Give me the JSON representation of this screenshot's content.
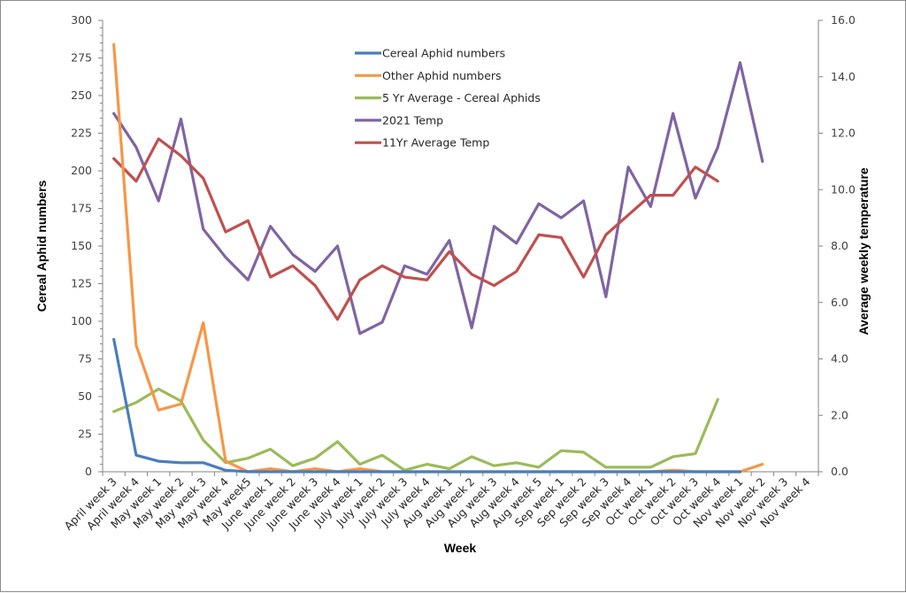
{
  "chart_data": {
    "type": "line",
    "title": "",
    "xlabel": "Week",
    "ylabel": "Cereal Aphid numbers",
    "y2label": "Average weekly temperature",
    "ylim": [
      0,
      300
    ],
    "y2lim": [
      0,
      16
    ],
    "yticks": [
      "0",
      "25",
      "50",
      "75",
      "100",
      "125",
      "150",
      "175",
      "200",
      "225",
      "250",
      "275",
      "300"
    ],
    "y2ticks": [
      "0.0",
      "2.0",
      "4.0",
      "6.0",
      "8.0",
      "10.0",
      "12.0",
      "14.0",
      "16.0"
    ],
    "grid": false,
    "legend_position": "top-center",
    "categories": [
      "April week 3",
      "April week 4",
      "May week 1",
      "May week 2",
      "May week 3",
      "May week 4",
      "May week5",
      "June week 1",
      "June week 2",
      "June week 3",
      "June week 4",
      "July week 1",
      "July week 2",
      "July week 3",
      "July week 4",
      "Aug week 1",
      "Aug week 2",
      "Aug week 3",
      "Aug week 4",
      "Aug week 5",
      "Sep week 1",
      "Sep week 2",
      "Sep week 3",
      "Sep week 4",
      "Oct week 1",
      "Oct week 2",
      "Oct week 3",
      "Oct week 4",
      "Nov week 1",
      "Nov week 2",
      "Nov week 3",
      "Nov week 4"
    ],
    "series": [
      {
        "name": "Cereal Aphid numbers",
        "axis": "left",
        "color": "#4a7ebb",
        "values": [
          88,
          11,
          7,
          6,
          6,
          1,
          0,
          0,
          0,
          0,
          0,
          0,
          0,
          0,
          0,
          0,
          0,
          0,
          0,
          0,
          0,
          0,
          0,
          0,
          0,
          0,
          0,
          0,
          0,
          null,
          null,
          null
        ]
      },
      {
        "name": "Other Aphid numbers",
        "axis": "left",
        "color": "#f79646",
        "values": [
          284,
          84,
          41,
          45,
          99,
          7,
          0,
          2,
          0,
          2,
          0,
          2,
          0,
          0,
          0,
          0,
          0,
          0,
          0,
          0,
          0,
          0,
          0,
          0,
          0,
          1,
          0,
          0,
          0,
          5,
          null,
          null
        ]
      },
      {
        "name": "5 Yr Average - Cereal Aphids",
        "axis": "left",
        "color": "#9bbb59",
        "values": [
          40,
          46,
          55,
          47,
          21,
          6,
          9,
          15,
          4,
          9,
          20,
          5,
          11,
          1,
          5,
          2,
          10,
          4,
          6,
          3,
          14,
          13,
          3,
          3,
          3,
          10,
          12,
          48,
          null,
          null,
          null,
          null
        ]
      },
      {
        "name": "2021 Temp",
        "axis": "right",
        "color": "#8064a2",
        "values": [
          12.7,
          11.5,
          9.6,
          12.5,
          8.6,
          7.6,
          6.8,
          8.7,
          7.7,
          7.1,
          8.0,
          4.9,
          5.3,
          7.3,
          7.0,
          8.2,
          5.1,
          8.7,
          8.1,
          9.5,
          9.0,
          9.6,
          6.2,
          10.8,
          9.4,
          12.7,
          9.7,
          11.5,
          14.5,
          11.0,
          null,
          null
        ]
      },
      {
        "name": "11Yr Average Temp",
        "axis": "right",
        "color": "#c0504d",
        "values": [
          11.1,
          10.3,
          11.8,
          11.2,
          10.4,
          8.5,
          8.9,
          6.9,
          7.3,
          6.6,
          5.4,
          6.8,
          7.3,
          6.9,
          6.8,
          7.8,
          7.0,
          6.6,
          7.1,
          8.4,
          8.3,
          6.9,
          8.4,
          9.1,
          9.8,
          9.8,
          10.8,
          10.3,
          null,
          null,
          null,
          null
        ]
      }
    ]
  }
}
